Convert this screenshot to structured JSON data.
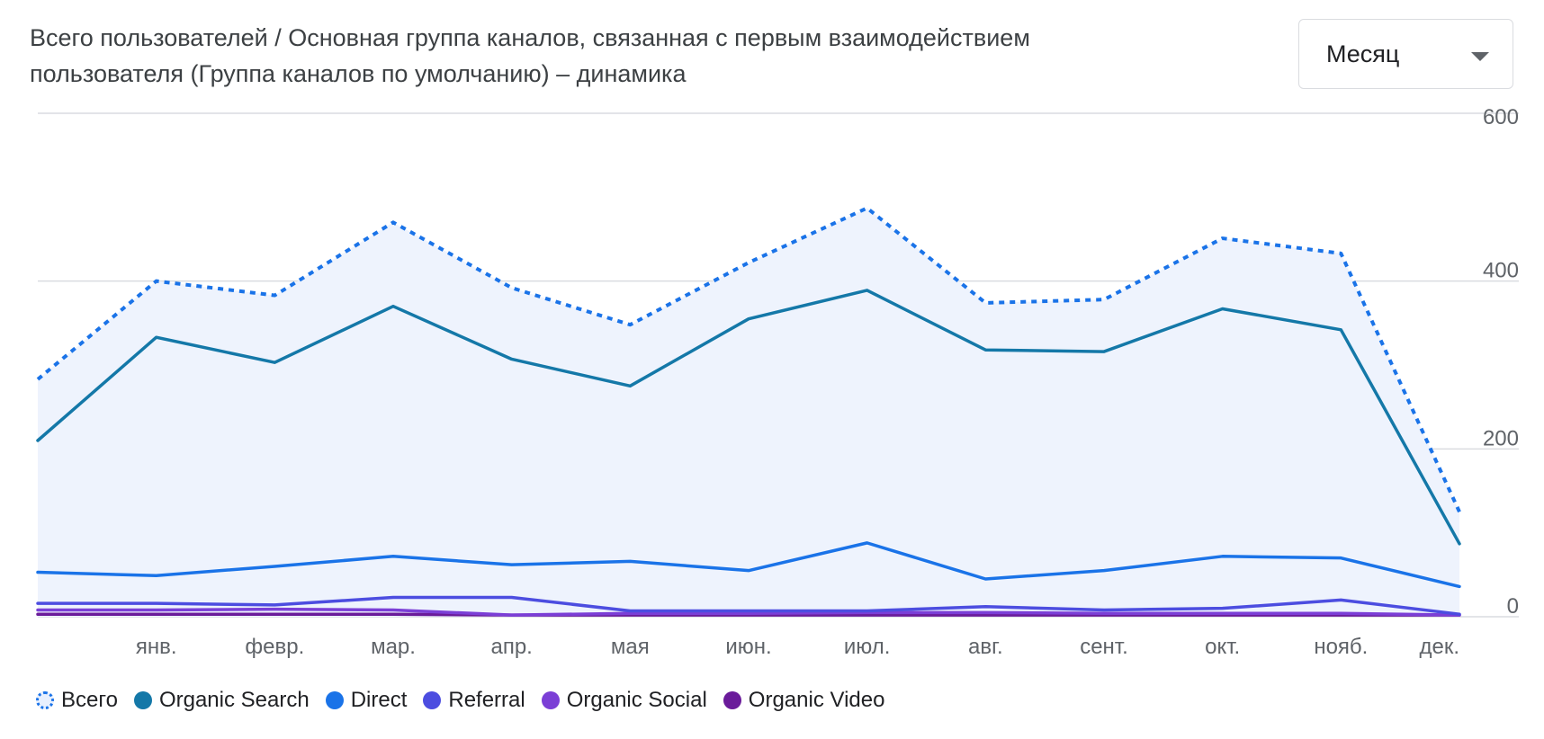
{
  "header": {
    "title": "Всего пользователей / Основная группа каналов, связанная с первым взаимодействием пользователя (Группа каналов по умолчанию) – динамика",
    "period_select": {
      "value": "Месяц"
    }
  },
  "chart_data": {
    "type": "line",
    "title": "Всего пользователей / Основная группа каналов, связанная с первым взаимодействием пользователя (Группа каналов по умолчанию) – динамика",
    "xlabel": "",
    "ylabel": "",
    "ylim": [
      0,
      600
    ],
    "yticks": [
      "0",
      "200",
      "400",
      "600"
    ],
    "yaxis_position": "right",
    "grid": true,
    "legend_position": "bottom-left",
    "categories": [
      "",
      "янв.",
      "февр.",
      "мар.",
      "апр.",
      "мая",
      "июн.",
      "июл.",
      "авг.",
      "сент.",
      "окт.",
      "нояб.",
      "дек."
    ],
    "series": [
      {
        "name": "Всего",
        "style": "dotted",
        "fill": true,
        "color": "#1a73e8",
        "values": [
          283,
          400,
          383,
          470,
          392,
          348,
          422,
          487,
          374,
          378,
          451,
          433,
          125
        ]
      },
      {
        "name": "Organic Search",
        "color": "#1478a8",
        "values": [
          210,
          333,
          303,
          370,
          307,
          275,
          355,
          389,
          318,
          316,
          367,
          342,
          87
        ]
      },
      {
        "name": "Direct",
        "color": "#1a73e8",
        "values": [
          53,
          49,
          60,
          72,
          62,
          66,
          55,
          88,
          45,
          55,
          72,
          70,
          36
        ]
      },
      {
        "name": "Referral",
        "color": "#4c4de0",
        "values": [
          16,
          16,
          14,
          23,
          23,
          7,
          7,
          7,
          12,
          8,
          10,
          20,
          3
        ]
      },
      {
        "name": "Organic Social",
        "color": "#7b3fd6",
        "values": [
          8,
          8,
          9,
          8,
          2,
          4,
          4,
          5,
          5,
          4,
          4,
          4,
          2
        ]
      },
      {
        "name": "Organic Video",
        "color": "#6a1b9a",
        "values": [
          3,
          3,
          3,
          3,
          2,
          2,
          2,
          2,
          2,
          2,
          2,
          2,
          2
        ]
      }
    ]
  }
}
